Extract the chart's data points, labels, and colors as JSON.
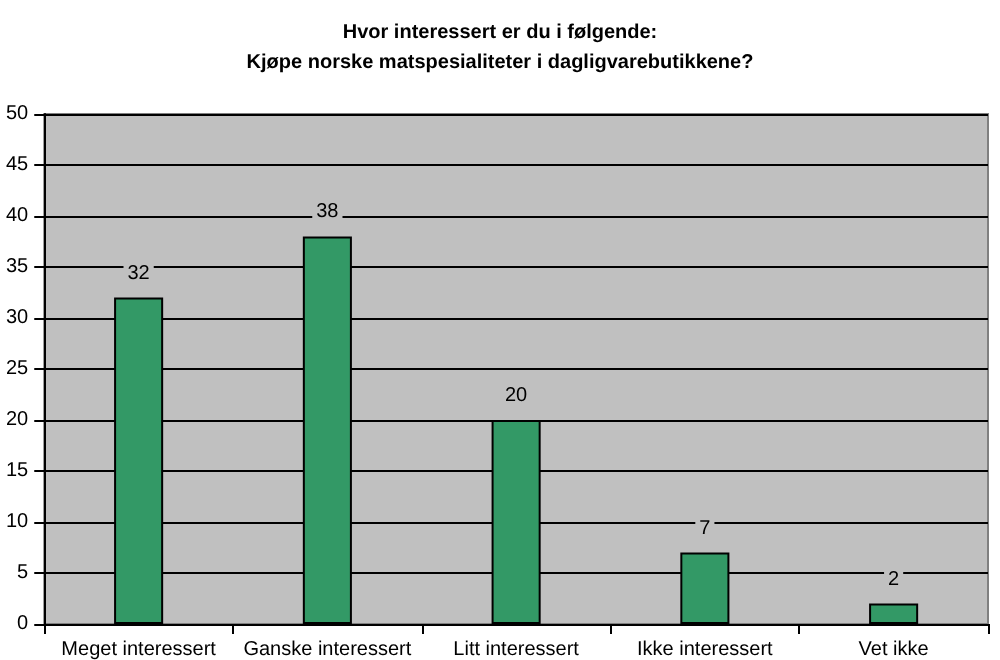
{
  "chart_data": {
    "type": "bar",
    "title": "Hvor interessert er du i følgende:\nKjøpe norske matspesialiteter i dagligvarebutikkene?",
    "categories": [
      "Meget interessert",
      "Ganske interessert",
      "Litt interessert",
      "Ikke interessert",
      "Vet ikke"
    ],
    "values": [
      32,
      38,
      20,
      7,
      2
    ],
    "color": "#339966",
    "ylim": [
      0,
      50
    ],
    "yticks": [
      0,
      5,
      10,
      15,
      20,
      25,
      30,
      35,
      40,
      45,
      50
    ],
    "grid": "y",
    "data_labels": true
  }
}
